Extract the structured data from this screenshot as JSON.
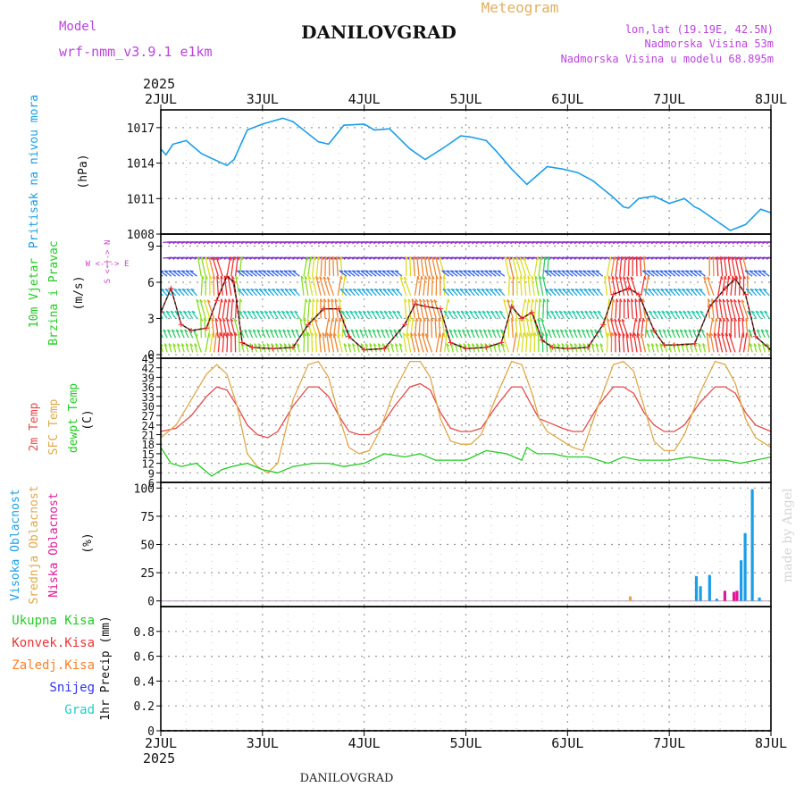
{
  "header": {
    "model_label": "Model",
    "model_name": "wrf-nmm_v3.9.1 e1km",
    "station": "DANILOVGRAD",
    "product": "Meteogram",
    "lonlat": "lon,lat (19.19E, 42.5N)",
    "altitude": "Nadmorska Visina 53m",
    "model_altitude": "Nadmorska Visina u modelu 68.895m",
    "footer_station": "DANILOVGRAD",
    "watermark": "made by Angel"
  },
  "time_axis": {
    "year_top": "2025",
    "year_bottom": "2025",
    "ticks": [
      "2JUL",
      "3JUL",
      "4JUL",
      "5JUL",
      "6JUL",
      "7JUL",
      "8JUL"
    ]
  },
  "colors": {
    "pressure": "#1a9ee8",
    "wind_label": "#22cc22",
    "wind_units": "#cc44cc",
    "temp2m": "#e84a4a",
    "sfc_temp": "#e0a84a",
    "dewpt": "#22cc22",
    "cloud_high": "#1a9ee8",
    "cloud_mid": "#e0a84a",
    "cloud_low": "#e0199a",
    "precip_total": "#22cc22",
    "precip_conv": "#ee3333",
    "precip_frz": "#ff7f27",
    "precip_snow": "#3333ee",
    "precip_grad": "#22cccc"
  },
  "labels": {
    "pressure": {
      "title": "Pritisak na nivou mora",
      "unit": "(hPa)"
    },
    "wind": {
      "title1": "10m Vjetar",
      "title2": "Brzina i Pravac",
      "unit": "(m/s)",
      "compass_we": "W <-|-> E",
      "compass_sn": "S <-|-> N"
    },
    "temp": {
      "t2m": "2m Temp",
      "sfc": "SFC Temp",
      "dew": "dewpt Temp",
      "unit": "(C)"
    },
    "cloud": {
      "high": "Visoka Oblacnost",
      "mid": "Srednja Oblacnost",
      "low": "Niska Oblacnost",
      "unit": "(%)"
    },
    "precip": {
      "total": "Ukupna Kisa",
      "conv": "Konvek.Kisa",
      "frz": "Zaledj.Kisa",
      "snow": "Snijeg",
      "grad": "Grad",
      "unit": "1hr Precip (mm)"
    }
  },
  "chart_data": [
    {
      "type": "line",
      "panel": "pressure",
      "ylim": [
        1008,
        1018.5
      ],
      "yticks": [
        "1008",
        "1011",
        "1014",
        "1017"
      ],
      "series": [
        {
          "x": [
            0,
            0.05,
            0.12,
            0.25,
            0.4,
            0.65,
            0.72,
            0.85,
            1.0,
            1.2,
            1.3,
            1.55,
            1.65,
            1.8,
            2.0,
            2.1,
            2.25,
            2.45,
            2.6,
            2.8,
            2.95,
            3.05,
            3.2,
            3.3,
            3.45,
            3.6,
            3.8,
            3.95,
            4.1,
            4.25,
            4.45,
            4.55,
            4.6,
            4.7,
            4.85,
            5.0,
            5.15,
            5.25,
            5.3,
            5.45,
            5.6,
            5.75,
            5.9,
            6.0
          ],
          "y": [
            1015.2,
            1014.7,
            1015.6,
            1015.9,
            1014.8,
            1013.8,
            1014.3,
            1016.8,
            1017.3,
            1017.8,
            1017.5,
            1015.8,
            1015.6,
            1017.2,
            1017.3,
            1016.8,
            1016.9,
            1015.2,
            1014.3,
            1015.4,
            1016.3,
            1016.2,
            1015.9,
            1015.0,
            1013.5,
            1012.2,
            1013.7,
            1013.5,
            1013.2,
            1012.5,
            1011.1,
            1010.3,
            1010.2,
            1011.0,
            1011.2,
            1010.6,
            1011.0,
            1010.3,
            1010.1,
            1009.2,
            1008.3,
            1008.8,
            1010.1,
            1009.8
          ]
        }
      ]
    },
    {
      "type": "line",
      "panel": "wind",
      "ylim": [
        -0.3,
        10
      ],
      "yticks": [
        "0",
        "3",
        "6",
        "9"
      ],
      "series": [
        {
          "name": "speed",
          "x": [
            0,
            0.1,
            0.2,
            0.3,
            0.45,
            0.55,
            0.65,
            0.72,
            0.8,
            0.9,
            1.1,
            1.3,
            1.45,
            1.6,
            1.75,
            1.85,
            2.0,
            2.2,
            2.4,
            2.5,
            2.6,
            2.75,
            2.85,
            3.0,
            3.2,
            3.35,
            3.45,
            3.55,
            3.65,
            3.75,
            3.85,
            4.0,
            4.2,
            4.35,
            4.45,
            4.6,
            4.7,
            4.85,
            4.95,
            5.05,
            5.25,
            5.4,
            5.55,
            5.65,
            5.75,
            5.85,
            6.0
          ],
          "y": [
            3.5,
            5.5,
            2.5,
            2.0,
            2.2,
            4.5,
            6.5,
            6.0,
            1.0,
            0.6,
            0.5,
            0.6,
            2.5,
            3.8,
            3.8,
            1.5,
            0.4,
            0.5,
            2.5,
            4.2,
            4.0,
            3.8,
            1.0,
            0.5,
            0.6,
            1.0,
            4.0,
            3.0,
            3.5,
            1.2,
            0.6,
            0.5,
            0.6,
            2.5,
            5.0,
            5.5,
            5.0,
            2.0,
            0.8,
            0.8,
            0.9,
            4.0,
            5.5,
            6.3,
            5.0,
            1.5,
            0.4
          ]
        }
      ]
    },
    {
      "type": "line",
      "panel": "temperature",
      "ylim": [
        6,
        45
      ],
      "yticks": [
        "6",
        "9",
        "12",
        "15",
        "18",
        "21",
        "24",
        "27",
        "30",
        "33",
        "36",
        "39",
        "42",
        "45"
      ],
      "series": [
        {
          "name": "2m Temp",
          "x": [
            0,
            0.15,
            0.3,
            0.45,
            0.55,
            0.65,
            0.75,
            0.85,
            0.95,
            1.05,
            1.15,
            1.3,
            1.45,
            1.55,
            1.65,
            1.75,
            1.85,
            1.95,
            2.05,
            2.15,
            2.3,
            2.45,
            2.55,
            2.65,
            2.75,
            2.85,
            2.95,
            3.05,
            3.15,
            3.3,
            3.45,
            3.55,
            3.65,
            3.72,
            3.8,
            3.95,
            4.05,
            4.15,
            4.3,
            4.45,
            4.55,
            4.65,
            4.75,
            4.85,
            4.95,
            5.05,
            5.15,
            5.3,
            5.45,
            5.55,
            5.65,
            5.75,
            5.85,
            6.0
          ],
          "y": [
            22,
            23,
            27,
            33,
            36,
            35,
            30,
            24,
            21,
            20,
            22,
            30,
            36,
            36,
            33,
            27,
            22,
            21,
            21,
            23,
            30,
            36,
            37,
            35,
            28,
            23,
            22,
            22,
            23,
            30,
            36,
            36,
            30,
            26,
            25,
            23,
            22,
            22,
            30,
            36,
            36,
            34,
            28,
            24,
            22,
            22,
            24,
            31,
            36,
            36,
            34,
            28,
            24,
            22
          ]
        },
        {
          "name": "SFC Temp",
          "x": [
            0,
            0.15,
            0.3,
            0.45,
            0.55,
            0.65,
            0.75,
            0.85,
            0.95,
            1.05,
            1.15,
            1.3,
            1.45,
            1.55,
            1.65,
            1.75,
            1.85,
            1.95,
            2.05,
            2.15,
            2.3,
            2.45,
            2.55,
            2.65,
            2.75,
            2.85,
            2.95,
            3.05,
            3.15,
            3.3,
            3.45,
            3.55,
            3.65,
            3.72,
            3.8,
            3.95,
            4.05,
            4.15,
            4.3,
            4.45,
            4.55,
            4.65,
            4.75,
            4.85,
            4.95,
            5.05,
            5.15,
            5.3,
            5.45,
            5.55,
            5.65,
            5.75,
            5.85,
            6.0
          ],
          "y": [
            20,
            24,
            32,
            40,
            43,
            40,
            30,
            15,
            11,
            9,
            12,
            32,
            43,
            44,
            39,
            27,
            17,
            15,
            16,
            22,
            35,
            44,
            44,
            39,
            26,
            19,
            18,
            18,
            21,
            33,
            44,
            43,
            34,
            26,
            22,
            19,
            17,
            16,
            30,
            43,
            44,
            41,
            30,
            19,
            16,
            16,
            21,
            34,
            44,
            43,
            37,
            26,
            20,
            17
          ]
        },
        {
          "name": "dewpt Temp",
          "x": [
            0,
            0.1,
            0.2,
            0.35,
            0.5,
            0.6,
            0.7,
            0.85,
            1.0,
            1.15,
            1.3,
            1.5,
            1.65,
            1.8,
            2.0,
            2.2,
            2.4,
            2.55,
            2.7,
            2.85,
            3.0,
            3.2,
            3.4,
            3.55,
            3.6,
            3.7,
            3.85,
            4.0,
            4.2,
            4.4,
            4.55,
            4.7,
            4.85,
            5.0,
            5.2,
            5.4,
            5.55,
            5.7,
            5.85,
            6.0
          ],
          "y": [
            17,
            12,
            11,
            12,
            8,
            10,
            11,
            12,
            10,
            9,
            11,
            12,
            12,
            11,
            12,
            15,
            14,
            15,
            13,
            13,
            13,
            16,
            15,
            13,
            17,
            15,
            15,
            14,
            14,
            12,
            14,
            13,
            13,
            13,
            14,
            13,
            13,
            12,
            13,
            14
          ]
        }
      ]
    },
    {
      "type": "bar",
      "panel": "cloud",
      "ylim": [
        -5,
        105
      ],
      "yticks": [
        "0",
        "25",
        "50",
        "75",
        "100"
      ],
      "series": [
        {
          "name": "Visoka Oblacnost",
          "x": [
            5.27,
            5.31,
            5.4,
            5.47,
            5.71,
            5.75,
            5.82,
            5.89
          ],
          "values": [
            22,
            13,
            23,
            2,
            36,
            60,
            99,
            3
          ]
        },
        {
          "name": "Srednja Oblacnost",
          "x": [
            4.62,
            6.61
          ],
          "values": [
            4,
            5
          ]
        },
        {
          "name": "Niska Oblacnost",
          "x": [
            5.55,
            5.67,
            5.64,
            6.48,
            6.72,
            7.48
          ],
          "values": [
            9,
            9,
            8,
            7,
            10,
            10
          ]
        }
      ]
    },
    {
      "type": "bar",
      "panel": "precip",
      "ylim": [
        0,
        1.0
      ],
      "yticks": [
        "0",
        "0.2",
        "0.4",
        "0.6",
        "0.8"
      ],
      "series": [
        {
          "name": "Ukupna Kisa",
          "x": [],
          "values": []
        }
      ]
    }
  ]
}
